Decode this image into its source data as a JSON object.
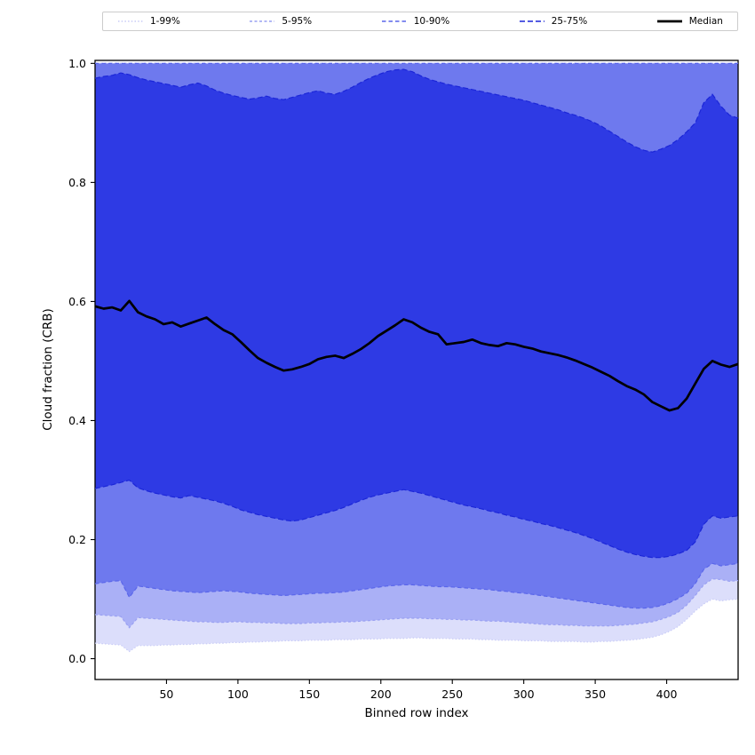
{
  "chart_data": {
    "type": "area",
    "title": "",
    "xlabel": "Binned row index",
    "ylabel": "Cloud fraction (CRB)",
    "xlim": [
      0,
      450
    ],
    "ylim": [
      -0.035,
      1.005
    ],
    "x_ticks": [
      50,
      100,
      150,
      200,
      250,
      300,
      350,
      400
    ],
    "y_ticks": [
      0.0,
      0.2,
      0.4,
      0.6,
      0.8,
      1.0
    ],
    "grid": false,
    "legend_position": "top-outside",
    "x": [
      0,
      6,
      12,
      18,
      24,
      30,
      36,
      42,
      48,
      54,
      60,
      66,
      72,
      78,
      84,
      90,
      96,
      102,
      108,
      114,
      120,
      126,
      132,
      138,
      144,
      150,
      156,
      162,
      168,
      174,
      180,
      186,
      192,
      198,
      204,
      210,
      216,
      222,
      228,
      234,
      240,
      246,
      252,
      258,
      264,
      270,
      276,
      282,
      288,
      294,
      300,
      306,
      312,
      318,
      324,
      330,
      336,
      342,
      348,
      354,
      360,
      366,
      372,
      378,
      384,
      390,
      396,
      402,
      408,
      414,
      420,
      426,
      432,
      438,
      444,
      450
    ],
    "bands": [
      {
        "label": "1-99%",
        "fill": "#dcdefb",
        "edge": "#c9ccf7",
        "dash": "1.5 2.2",
        "high": 1.0,
        "low": [
          0.026,
          0.025,
          0.024,
          0.023,
          0.012,
          0.022,
          0.022,
          0.022,
          0.023,
          0.023,
          0.024,
          0.024,
          0.025,
          0.025,
          0.026,
          0.026,
          0.027,
          0.027,
          0.028,
          0.028,
          0.029,
          0.029,
          0.03,
          0.03,
          0.03,
          0.031,
          0.031,
          0.031,
          0.032,
          0.032,
          0.032,
          0.033,
          0.033,
          0.033,
          0.034,
          0.034,
          0.034,
          0.035,
          0.035,
          0.034,
          0.034,
          0.034,
          0.033,
          0.033,
          0.033,
          0.032,
          0.032,
          0.031,
          0.031,
          0.031,
          0.03,
          0.03,
          0.03,
          0.029,
          0.029,
          0.029,
          0.029,
          0.028,
          0.028,
          0.029,
          0.029,
          0.03,
          0.031,
          0.032,
          0.034,
          0.036,
          0.04,
          0.046,
          0.054,
          0.066,
          0.08,
          0.092,
          0.1,
          0.097,
          0.099,
          0.1
        ]
      },
      {
        "label": "5-95%",
        "fill": "#aab0f6",
        "edge": "#99a0f2",
        "dash": "3 2.5",
        "high": 1.0,
        "low": [
          0.074,
          0.073,
          0.072,
          0.071,
          0.052,
          0.069,
          0.068,
          0.067,
          0.066,
          0.065,
          0.064,
          0.063,
          0.062,
          0.062,
          0.061,
          0.061,
          0.062,
          0.062,
          0.061,
          0.061,
          0.06,
          0.06,
          0.059,
          0.059,
          0.059,
          0.06,
          0.06,
          0.061,
          0.061,
          0.062,
          0.062,
          0.063,
          0.064,
          0.065,
          0.066,
          0.067,
          0.068,
          0.068,
          0.068,
          0.067,
          0.067,
          0.066,
          0.066,
          0.065,
          0.065,
          0.064,
          0.063,
          0.063,
          0.062,
          0.061,
          0.06,
          0.059,
          0.058,
          0.057,
          0.057,
          0.056,
          0.056,
          0.055,
          0.055,
          0.055,
          0.055,
          0.056,
          0.057,
          0.058,
          0.06,
          0.062,
          0.066,
          0.071,
          0.078,
          0.09,
          0.106,
          0.124,
          0.134,
          0.133,
          0.13,
          0.131
        ]
      },
      {
        "label": "10-90%",
        "fill": "#6e79ee",
        "edge": "#5a66ea",
        "dash": "4.5 3",
        "high": 1.0,
        "low": [
          0.126,
          0.128,
          0.13,
          0.131,
          0.103,
          0.122,
          0.12,
          0.118,
          0.116,
          0.114,
          0.113,
          0.112,
          0.111,
          0.112,
          0.113,
          0.114,
          0.113,
          0.112,
          0.11,
          0.109,
          0.108,
          0.107,
          0.106,
          0.107,
          0.108,
          0.109,
          0.11,
          0.11,
          0.111,
          0.112,
          0.114,
          0.116,
          0.118,
          0.12,
          0.122,
          0.123,
          0.124,
          0.124,
          0.123,
          0.122,
          0.121,
          0.121,
          0.12,
          0.119,
          0.118,
          0.117,
          0.116,
          0.114,
          0.113,
          0.111,
          0.11,
          0.108,
          0.106,
          0.104,
          0.102,
          0.1,
          0.098,
          0.096,
          0.094,
          0.092,
          0.09,
          0.088,
          0.086,
          0.085,
          0.085,
          0.086,
          0.089,
          0.094,
          0.101,
          0.11,
          0.126,
          0.15,
          0.16,
          0.156,
          0.158,
          0.16
        ]
      },
      {
        "label": "25-75%",
        "fill": "#2e3ae4",
        "edge": "#1b26d8",
        "dash": "6 3",
        "high": [
          0.975,
          0.978,
          0.98,
          0.984,
          0.981,
          0.976,
          0.972,
          0.969,
          0.966,
          0.963,
          0.96,
          0.964,
          0.967,
          0.962,
          0.955,
          0.95,
          0.946,
          0.943,
          0.94,
          0.942,
          0.945,
          0.941,
          0.939,
          0.943,
          0.947,
          0.951,
          0.954,
          0.95,
          0.948,
          0.953,
          0.96,
          0.968,
          0.975,
          0.981,
          0.986,
          0.989,
          0.99,
          0.986,
          0.979,
          0.973,
          0.969,
          0.965,
          0.962,
          0.959,
          0.956,
          0.953,
          0.95,
          0.947,
          0.944,
          0.941,
          0.938,
          0.934,
          0.93,
          0.926,
          0.922,
          0.917,
          0.913,
          0.908,
          0.902,
          0.895,
          0.886,
          0.877,
          0.868,
          0.86,
          0.854,
          0.851,
          0.856,
          0.862,
          0.872,
          0.885,
          0.9,
          0.934,
          0.948,
          0.928,
          0.913,
          0.908
        ],
        "low": [
          0.286,
          0.289,
          0.292,
          0.296,
          0.3,
          0.287,
          0.282,
          0.278,
          0.275,
          0.272,
          0.27,
          0.274,
          0.271,
          0.268,
          0.265,
          0.261,
          0.256,
          0.25,
          0.246,
          0.242,
          0.239,
          0.236,
          0.233,
          0.231,
          0.233,
          0.237,
          0.241,
          0.245,
          0.249,
          0.254,
          0.26,
          0.266,
          0.271,
          0.275,
          0.278,
          0.281,
          0.284,
          0.281,
          0.278,
          0.274,
          0.27,
          0.266,
          0.262,
          0.258,
          0.255,
          0.252,
          0.248,
          0.245,
          0.241,
          0.238,
          0.234,
          0.231,
          0.227,
          0.224,
          0.22,
          0.216,
          0.212,
          0.207,
          0.202,
          0.196,
          0.19,
          0.184,
          0.179,
          0.175,
          0.172,
          0.17,
          0.17,
          0.172,
          0.176,
          0.182,
          0.196,
          0.226,
          0.24,
          0.236,
          0.238,
          0.24
        ]
      }
    ],
    "median": {
      "label": "Median",
      "color": "#000000",
      "values": [
        0.592,
        0.588,
        0.59,
        0.585,
        0.601,
        0.582,
        0.575,
        0.57,
        0.562,
        0.565,
        0.558,
        0.563,
        0.568,
        0.573,
        0.562,
        0.552,
        0.545,
        0.532,
        0.518,
        0.505,
        0.497,
        0.49,
        0.484,
        0.486,
        0.49,
        0.495,
        0.503,
        0.507,
        0.509,
        0.505,
        0.512,
        0.52,
        0.53,
        0.542,
        0.551,
        0.56,
        0.57,
        0.565,
        0.556,
        0.549,
        0.545,
        0.528,
        0.53,
        0.532,
        0.536,
        0.53,
        0.527,
        0.525,
        0.53,
        0.528,
        0.524,
        0.521,
        0.516,
        0.513,
        0.51,
        0.506,
        0.501,
        0.495,
        0.489,
        0.482,
        0.475,
        0.466,
        0.458,
        0.452,
        0.444,
        0.431,
        0.424,
        0.417,
        0.421,
        0.437,
        0.462,
        0.487,
        0.5,
        0.494,
        0.49,
        0.495
      ]
    }
  }
}
